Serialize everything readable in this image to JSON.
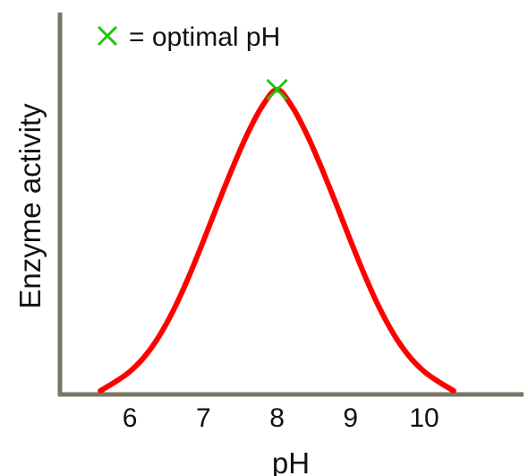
{
  "chart_data": {
    "type": "line",
    "title": "",
    "xlabel": "pH",
    "ylabel": "Enzyme activity",
    "xlim": [
      5.05,
      11.35
    ],
    "ylim": [
      0,
      1
    ],
    "x_ticks": [
      6,
      7,
      8,
      9,
      10
    ],
    "x_tick_labels": [
      "6",
      "7",
      "8",
      "9",
      "10"
    ],
    "show_y_ticks": false,
    "grid": false,
    "series": [
      {
        "color": "#ff0000",
        "x": [
          5.6,
          5.8,
          6.0,
          6.2,
          6.4,
          6.6,
          6.8,
          7.0,
          7.2,
          7.4,
          7.6,
          7.8,
          8.0,
          8.2,
          8.4,
          8.6,
          8.8,
          9.0,
          9.2,
          9.4,
          9.6,
          9.8,
          10.0,
          10.2,
          10.4
        ],
        "y": [
          0.012,
          0.041,
          0.075,
          0.124,
          0.192,
          0.28,
          0.386,
          0.504,
          0.627,
          0.746,
          0.856,
          0.946,
          1.0,
          0.946,
          0.856,
          0.746,
          0.627,
          0.504,
          0.386,
          0.28,
          0.192,
          0.124,
          0.075,
          0.041,
          0.012
        ]
      }
    ],
    "optimum": {
      "x": 8.0,
      "y": 1.0,
      "marker": "x",
      "color": "#22c40f"
    },
    "legend": {
      "position": "top-left",
      "marker": "✕",
      "marker_color": "#22c40f",
      "label": "= optimal pH"
    },
    "axis_color": "#7a7468"
  }
}
